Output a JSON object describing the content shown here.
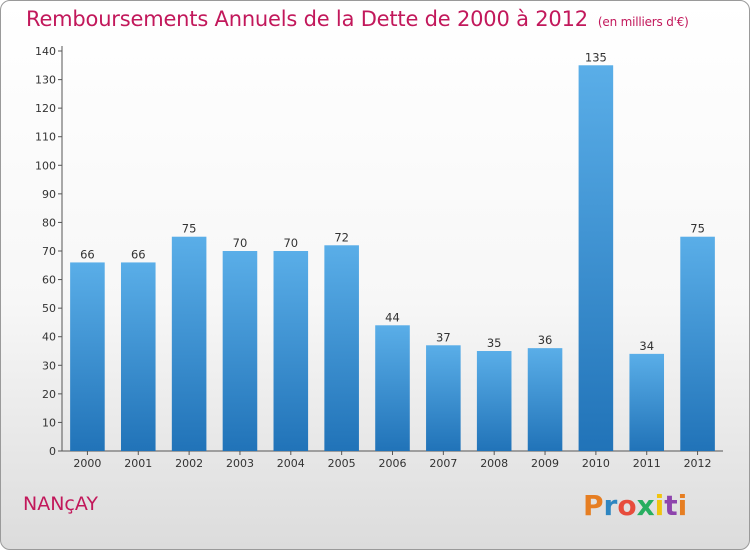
{
  "header": {
    "title": "Remboursements Annuels de la Dette de 2000 à 2012",
    "subtitle": "(en milliers d'€)"
  },
  "footer": {
    "commune": "NANçAY",
    "logo_text": "Proxiti"
  },
  "colors": {
    "title": "#c2185b",
    "bar_top": "#5aaee8",
    "bar_bottom": "#2173b8",
    "axis": "#555555",
    "logo_letters": [
      "#e67e22",
      "#2e86c1",
      "#e74c3c",
      "#27ae60",
      "#f1c40f",
      "#8e44ad",
      "#e67e22"
    ]
  },
  "chart_data": {
    "type": "bar",
    "title": "Remboursements Annuels de la Dette de 2000 à 2012",
    "subtitle": "(en milliers d'€)",
    "categories": [
      "2000",
      "2001",
      "2002",
      "2003",
      "2004",
      "2005",
      "2006",
      "2007",
      "2008",
      "2009",
      "2010",
      "2011",
      "2012"
    ],
    "values": [
      66,
      66,
      75,
      70,
      70,
      72,
      44,
      37,
      35,
      36,
      135,
      34,
      75
    ],
    "ylim": [
      0,
      140
    ],
    "yticks": [
      0,
      10,
      20,
      30,
      40,
      50,
      60,
      70,
      80,
      90,
      100,
      110,
      120,
      130,
      140
    ],
    "grid": false,
    "legend": "none"
  }
}
